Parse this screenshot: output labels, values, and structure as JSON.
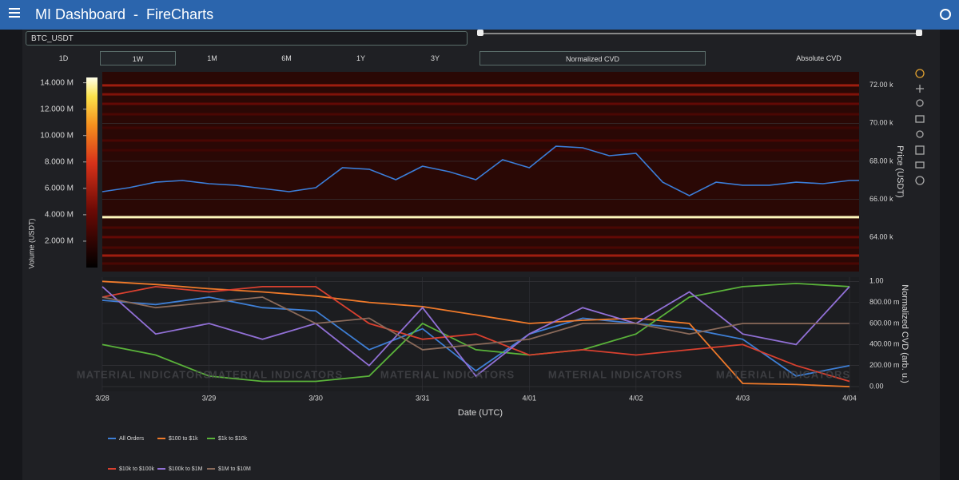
{
  "header": {
    "title": "MI Dashboard  -  FireCharts"
  },
  "controls": {
    "symbol": "BTC_USDT",
    "ranges": [
      "1D",
      "1W",
      "1M",
      "6M",
      "1Y",
      "3Y"
    ],
    "selected_range": "1W",
    "modes": [
      "Normalized CVD",
      "Absolute CVD"
    ],
    "selected_mode": "Normalized CVD"
  },
  "watermark": "MATERIAL INDICATORS",
  "chart_data": [
    {
      "type": "line",
      "y_label": "Price (USDT)",
      "colorbar_label": "Volume (USDT)",
      "color": "#3b7dd8",
      "xlim": [
        0,
        7.09
      ],
      "x": [
        0,
        0.25,
        0.5,
        0.75,
        1,
        1.25,
        1.5,
        1.75,
        2,
        2.25,
        2.5,
        2.75,
        3,
        3.25,
        3.5,
        3.75,
        4,
        4.25,
        4.5,
        4.75,
        5,
        5.25,
        5.5,
        5.75,
        6,
        6.25,
        6.5,
        6.75,
        7,
        7.09
      ],
      "values": [
        66400,
        66610,
        66900,
        66990,
        66820,
        66740,
        66570,
        66400,
        66610,
        67660,
        67580,
        67030,
        67740,
        67450,
        67030,
        68080,
        67660,
        68790,
        68710,
        68290,
        68420,
        66900,
        66190,
        66900,
        66740,
        66740,
        66900,
        66820,
        66990,
        66990
      ],
      "ylim": [
        62200,
        72700
      ],
      "yticks": [
        {
          "value": 64000,
          "label": "64.00 k"
        },
        {
          "value": 66000,
          "label": "66.00 k"
        },
        {
          "value": 68000,
          "label": "68.00 k"
        },
        {
          "value": 70000,
          "label": "70.00 k"
        },
        {
          "value": 72000,
          "label": "72.00 k"
        }
      ],
      "heat_levels": {
        "prices": [
          71990,
          71520,
          71020,
          70470,
          69760,
          69090,
          68580,
          65060,
          64510,
          64010,
          63460,
          63040,
          62620
        ],
        "volumes": [
          6000000,
          5000000,
          4000000,
          3000000,
          2500000,
          3000000,
          2500000,
          14000000,
          3000000,
          4000000,
          3000000,
          6000000,
          3000000
        ]
      },
      "colorbar_lim": [
        0,
        14400000
      ],
      "colorbar_ticks": [
        {
          "value": 2000000,
          "label": "2.000 M"
        },
        {
          "value": 4000000,
          "label": "4.000 M"
        },
        {
          "value": 6000000,
          "label": "6.000 M"
        },
        {
          "value": 8000000,
          "label": "8.000 M"
        },
        {
          "value": 10000000,
          "label": "10.000 M"
        },
        {
          "value": 12000000,
          "label": "12.000 M"
        },
        {
          "value": 14000000,
          "label": "14.000 M"
        }
      ]
    },
    {
      "type": "line",
      "x_label": "Date (UTC)",
      "y_label": "Normalized CVD (arb. u.)",
      "xlim": [
        0,
        7.09
      ],
      "xticks": [
        {
          "value": 0,
          "label": "3/28"
        },
        {
          "value": 1,
          "label": "3/29"
        },
        {
          "value": 2,
          "label": "3/30"
        },
        {
          "value": 3,
          "label": "3/31"
        },
        {
          "value": 4,
          "label": "4/01"
        },
        {
          "value": 5,
          "label": "4/02"
        },
        {
          "value": 6,
          "label": "4/03"
        },
        {
          "value": 7,
          "label": "4/04"
        }
      ],
      "ylim": [
        -0.045,
        1.04
      ],
      "yticks": [
        {
          "value": 0,
          "label": "0.00"
        },
        {
          "value": 0.2,
          "label": "200.00 m"
        },
        {
          "value": 0.4,
          "label": "400.00 m"
        },
        {
          "value": 0.6,
          "label": "600.00 m"
        },
        {
          "value": 0.8,
          "label": "800.00 m"
        },
        {
          "value": 1,
          "label": "1.00"
        }
      ],
      "x": [
        0,
        0.5,
        1,
        1.5,
        2,
        2.5,
        3,
        3.5,
        4,
        4.5,
        5,
        5.5,
        6,
        6.5,
        7
      ],
      "series": [
        {
          "name": "All Orders",
          "color": "#3e7fd6",
          "values": [
            0.82,
            0.78,
            0.85,
            0.75,
            0.72,
            0.35,
            0.55,
            0.15,
            0.5,
            0.65,
            0.6,
            0.55,
            0.45,
            0.1,
            0.2
          ]
        },
        {
          "name": "$100 to $1k",
          "color": "#f07a2a",
          "values": [
            1.0,
            0.97,
            0.93,
            0.9,
            0.86,
            0.8,
            0.76,
            0.68,
            0.6,
            0.63,
            0.65,
            0.6,
            0.03,
            0.02,
            0.0
          ]
        },
        {
          "name": "$1k to $10k",
          "color": "#5ab33a",
          "values": [
            0.4,
            0.3,
            0.1,
            0.05,
            0.05,
            0.1,
            0.6,
            0.35,
            0.3,
            0.35,
            0.5,
            0.85,
            0.95,
            0.98,
            0.95
          ]
        },
        {
          "name": "$10k to $100k",
          "color": "#d9402f",
          "values": [
            0.85,
            0.95,
            0.9,
            0.95,
            0.95,
            0.6,
            0.45,
            0.5,
            0.3,
            0.35,
            0.3,
            0.35,
            0.4,
            0.2,
            0.05
          ]
        },
        {
          "name": "$100k to $1M",
          "color": "#9170d6",
          "values": [
            0.95,
            0.5,
            0.6,
            0.45,
            0.6,
            0.2,
            0.75,
            0.1,
            0.5,
            0.75,
            0.6,
            0.9,
            0.5,
            0.4,
            0.95
          ]
        },
        {
          "name": "$1M to $10M",
          "color": "#8a6a5a",
          "values": [
            0.85,
            0.75,
            0.8,
            0.85,
            0.6,
            0.65,
            0.35,
            0.4,
            0.45,
            0.6,
            0.6,
            0.5,
            0.6,
            0.6,
            0.6
          ]
        }
      ]
    }
  ]
}
